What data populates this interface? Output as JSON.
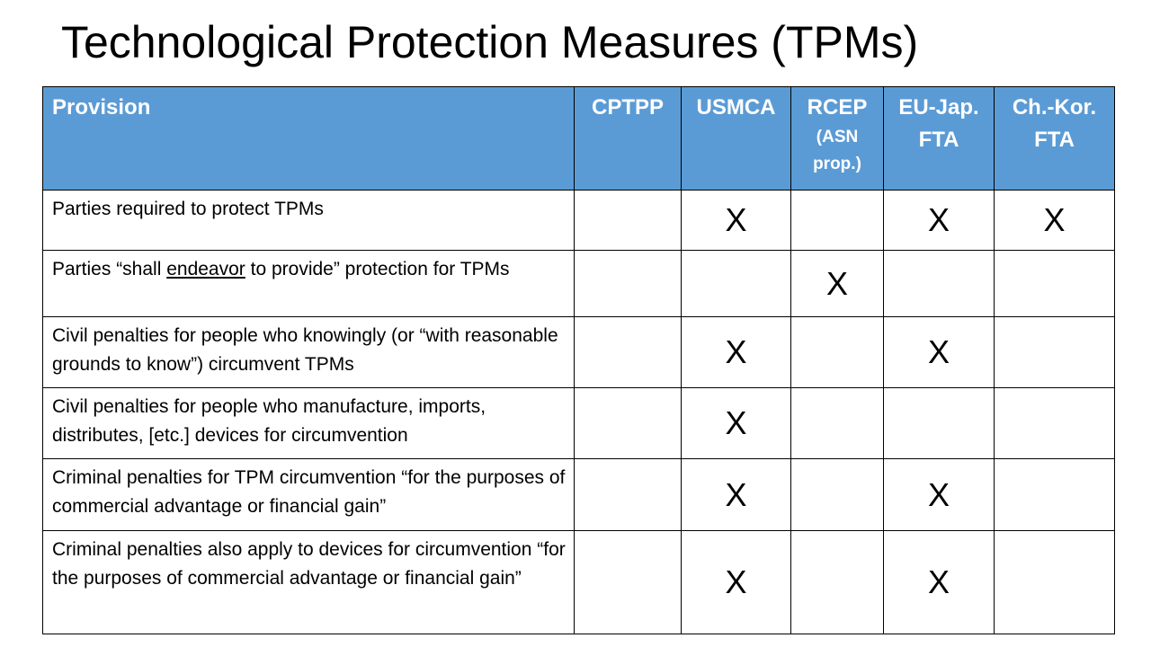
{
  "slide": {
    "title": "Technological Protection Measures (TPMs)"
  },
  "table": {
    "header": {
      "provision": "Provision",
      "cptpp": "CPTPP",
      "usmca": "USMCA",
      "rcep": "RCEP",
      "rcep_sub_1": "(ASN",
      "rcep_sub_2": "prop.)",
      "eujap_1": "EU-Jap.",
      "eujap_2": "FTA",
      "chkor_1": "Ch.-Kor.",
      "chkor_2": "FTA"
    },
    "rows": [
      {
        "provision": "Parties required to protect TPMs",
        "cptpp": "",
        "usmca": "X",
        "rcep": "",
        "eujap": "X",
        "chkor": "X"
      },
      {
        "provision_pre": "Parties “shall ",
        "provision_underlined": "endeavor",
        "provision_post": " to provide” protection for TPMs",
        "cptpp": "",
        "usmca": "",
        "rcep": "X",
        "eujap": "",
        "chkor": ""
      },
      {
        "provision": "Civil penalties for people who knowingly (or “with reasonable grounds to know”) circumvent TPMs",
        "cptpp": "",
        "usmca": "X",
        "rcep": "",
        "eujap": "X",
        "chkor": ""
      },
      {
        "provision": "Civil penalties for people who manufacture, imports, distributes, [etc.] devices for circumvention",
        "cptpp": "",
        "usmca": "X",
        "rcep": "",
        "eujap": "",
        "chkor": ""
      },
      {
        "provision": "Criminal penalties for TPM circumvention “for the purposes of commercial advantage or financial gain”",
        "cptpp": "",
        "usmca": "X",
        "rcep": "",
        "eujap": "X",
        "chkor": ""
      },
      {
        "provision": "Criminal penalties also apply to devices for circumvention “for the purposes of commercial advantage or financial gain”",
        "cptpp": "",
        "usmca": "X",
        "rcep": "",
        "eujap": "X",
        "chkor": ""
      }
    ]
  }
}
